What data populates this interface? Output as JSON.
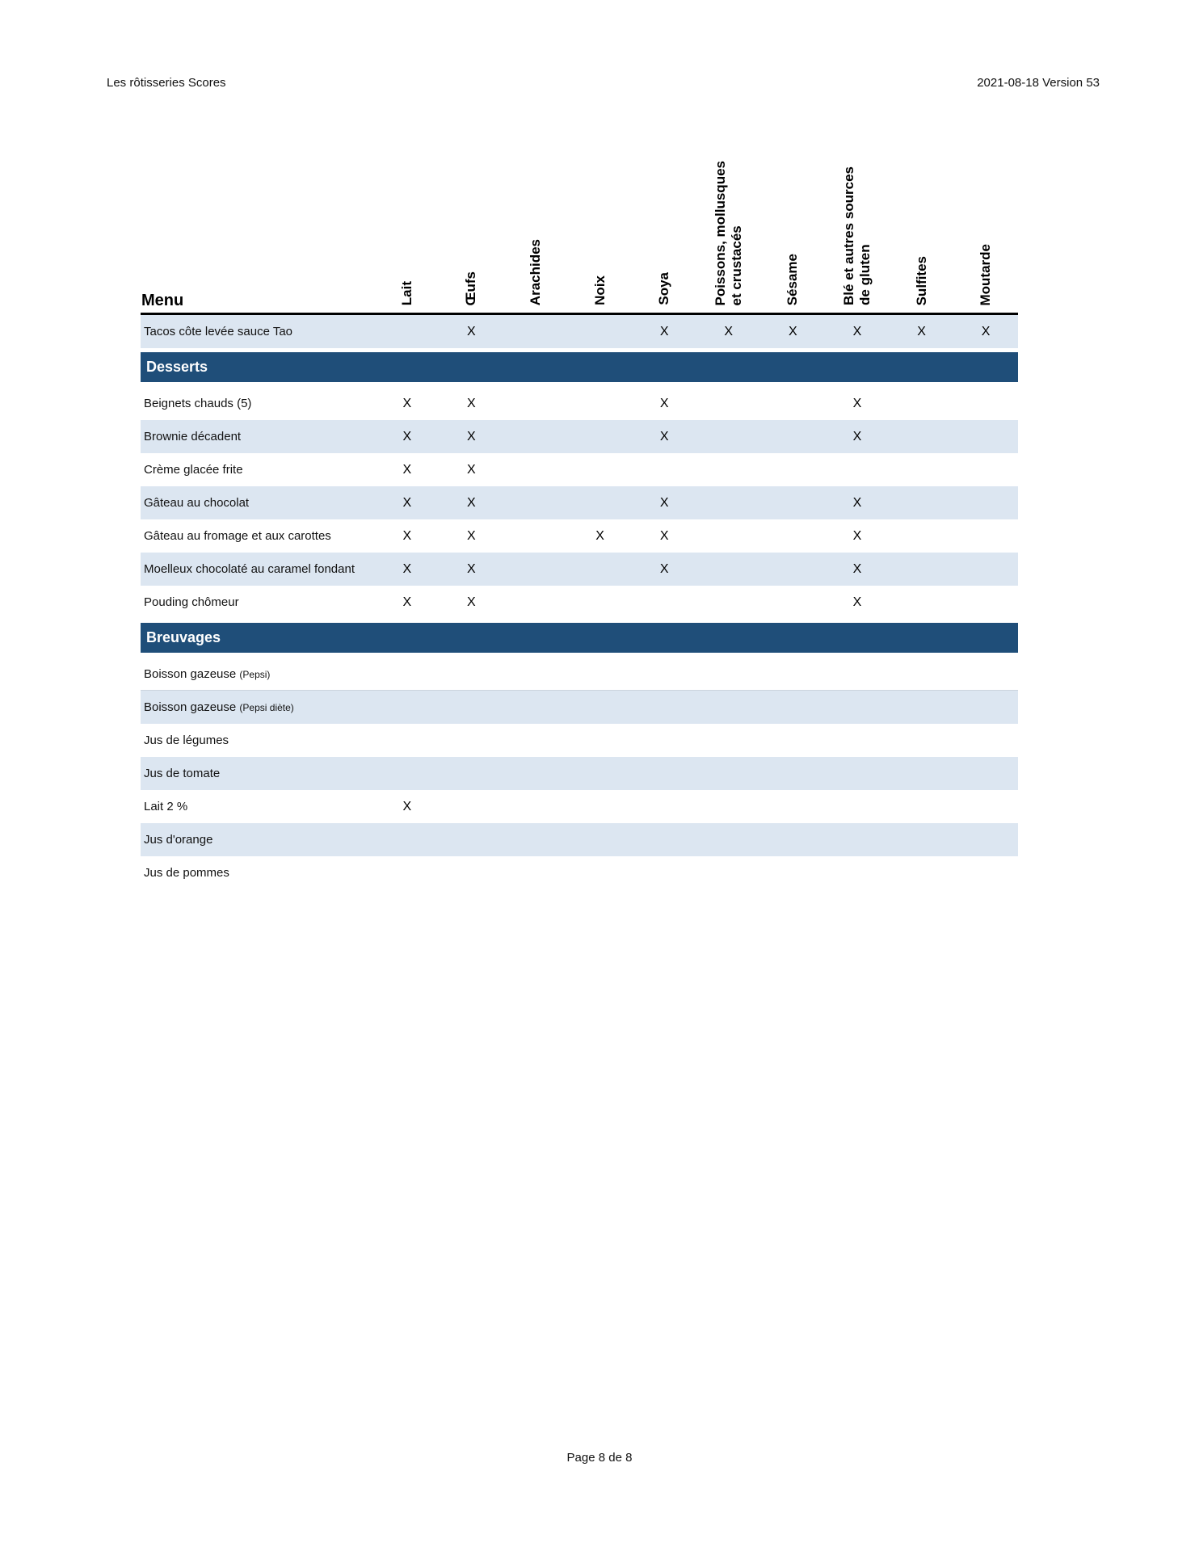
{
  "header": {
    "left": "Les rôtisseries Scores",
    "right": "2021-08-18 Version 53"
  },
  "colors": {
    "section_header_bg": "#1f4e79",
    "stripe_bg": "#dce6f1",
    "header_rule": "#000000"
  },
  "table": {
    "menu_header": "Menu",
    "mark": "X",
    "columns": [
      {
        "id": "lait",
        "label": "Lait"
      },
      {
        "id": "oeufs",
        "label": "Œufs"
      },
      {
        "id": "arachides",
        "label": "Arachides"
      },
      {
        "id": "noix",
        "label": "Noix"
      },
      {
        "id": "soya",
        "label": "Soya"
      },
      {
        "id": "poissons",
        "label": "Poissons, mollusques\net crustacés"
      },
      {
        "id": "sesame",
        "label": "Sésame"
      },
      {
        "id": "ble",
        "label": "Blé et autres sources\nde gluten"
      },
      {
        "id": "sulfites",
        "label": "Sulfites"
      },
      {
        "id": "moutarde",
        "label": "Moutarde"
      }
    ],
    "rows": [
      {
        "type": "item",
        "label": "Tacos côte levée sauce Tao",
        "note": "",
        "shade": true,
        "allergens": [
          "oeufs",
          "soya",
          "poissons",
          "sesame",
          "ble",
          "sulfites",
          "moutarde"
        ]
      },
      {
        "type": "section",
        "label": "Desserts"
      },
      {
        "type": "item",
        "label": "Beignets chauds (5)",
        "note": "",
        "shade": false,
        "allergens": [
          "lait",
          "oeufs",
          "soya",
          "ble"
        ]
      },
      {
        "type": "item",
        "label": "Brownie décadent",
        "note": "",
        "shade": true,
        "allergens": [
          "lait",
          "oeufs",
          "soya",
          "ble"
        ]
      },
      {
        "type": "item",
        "label": "Crème glacée frite",
        "note": "",
        "shade": false,
        "allergens": [
          "lait",
          "oeufs"
        ]
      },
      {
        "type": "item",
        "label": "Gâteau au chocolat",
        "note": "",
        "shade": true,
        "allergens": [
          "lait",
          "oeufs",
          "soya",
          "ble"
        ]
      },
      {
        "type": "item",
        "label": "Gâteau au fromage et aux carottes",
        "note": "",
        "shade": false,
        "allergens": [
          "lait",
          "oeufs",
          "noix",
          "soya",
          "ble"
        ]
      },
      {
        "type": "item",
        "label": "Moelleux chocolaté au caramel fondant",
        "note": "",
        "shade": true,
        "allergens": [
          "lait",
          "oeufs",
          "soya",
          "ble"
        ]
      },
      {
        "type": "item",
        "label": "Pouding chômeur",
        "note": "",
        "shade": false,
        "allergens": [
          "lait",
          "oeufs",
          "ble"
        ]
      },
      {
        "type": "section",
        "label": "Breuvages"
      },
      {
        "type": "item",
        "label": "Boisson gazeuse",
        "note": "(Pepsi)",
        "shade": false,
        "divider": true,
        "allergens": []
      },
      {
        "type": "item",
        "label": "Boisson gazeuse",
        "note": "(Pepsi diète)",
        "shade": true,
        "allergens": []
      },
      {
        "type": "item",
        "label": "Jus de légumes",
        "note": "",
        "shade": false,
        "allergens": []
      },
      {
        "type": "item",
        "label": "Jus de tomate",
        "note": "",
        "shade": true,
        "allergens": []
      },
      {
        "type": "item",
        "label": "Lait 2 %",
        "note": "",
        "shade": false,
        "allergens": [
          "lait"
        ]
      },
      {
        "type": "item",
        "label": "Jus d'orange",
        "note": "",
        "shade": true,
        "allergens": []
      },
      {
        "type": "item",
        "label": "Jus de pommes",
        "note": "",
        "shade": false,
        "allergens": []
      }
    ]
  },
  "footer": {
    "page_label": "Page 8 de 8"
  }
}
